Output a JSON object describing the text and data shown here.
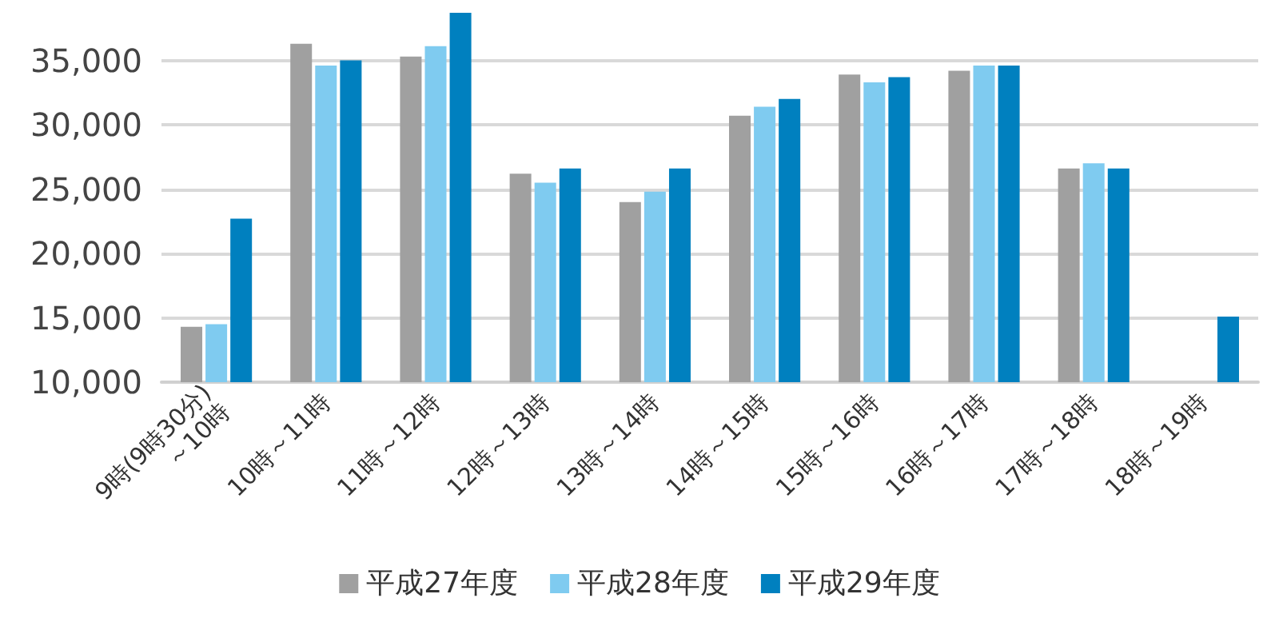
{
  "chart_data": {
    "type": "bar",
    "categories": [
      "9時(9時30分)\n～10時",
      "10時～11時",
      "11時～12時",
      "12時～13時",
      "13時～14時",
      "14時～15時",
      "15時～16時",
      "16時～17時",
      "17時～18時",
      "18時～19時"
    ],
    "series": [
      {
        "name": "平成27年度",
        "color": "#a0a0a0",
        "values": [
          14300,
          36300,
          35300,
          26200,
          24000,
          30700,
          33900,
          34200,
          26600,
          null
        ]
      },
      {
        "name": "平成28年度",
        "color": "#7fcbf0",
        "values": [
          14500,
          34600,
          36100,
          25500,
          24800,
          31400,
          33300,
          34600,
          27000,
          null
        ]
      },
      {
        "name": "平成29年度",
        "color": "#0080bf",
        "values": [
          22700,
          35000,
          38700,
          26600,
          26600,
          32000,
          33700,
          34600,
          26600,
          15100
        ]
      }
    ],
    "ylim": [
      10000,
      38700
    ],
    "yticks": [
      {
        "value": 10000,
        "label": "10,000"
      },
      {
        "value": 15000,
        "label": "15,000"
      },
      {
        "value": 20000,
        "label": "20,000"
      },
      {
        "value": 25000,
        "label": "25,000"
      },
      {
        "value": 30000,
        "label": "30,000"
      },
      {
        "value": 35000,
        "label": "35,000"
      }
    ],
    "grid": "y",
    "legend": "bottom"
  }
}
